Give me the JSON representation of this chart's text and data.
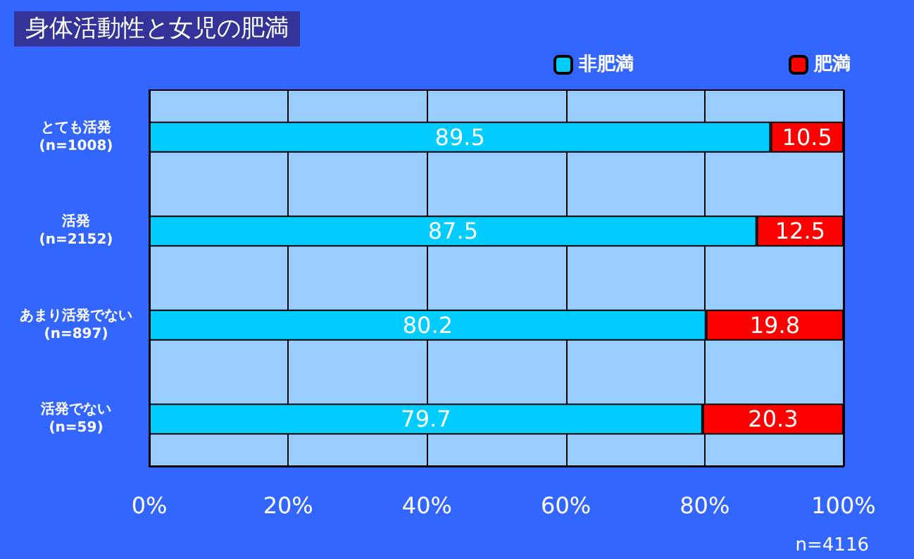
{
  "chart_data": {
    "type": "bar",
    "orientation": "horizontal",
    "stacked": true,
    "title": "身体活動性と女児の肥満",
    "categories": [
      "とても活発\n(n=1008)",
      "活発\n(n=2152)",
      "あまり活発でない\n(n=897)",
      "活発でない\n(n=59)"
    ],
    "series": [
      {
        "name": "非肥満",
        "color": "#00ccff",
        "values": [
          89.5,
          87.5,
          80.2,
          79.7
        ]
      },
      {
        "name": "肥満",
        "color": "#ff0000",
        "values": [
          10.5,
          12.5,
          19.8,
          20.3
        ]
      }
    ],
    "xlim": [
      0,
      100
    ],
    "xticks": [
      {
        "value": 0,
        "label": "0%"
      },
      {
        "value": 20,
        "label": "20%"
      },
      {
        "value": 40,
        "label": "40%"
      },
      {
        "value": 60,
        "label": "60%"
      },
      {
        "value": 80,
        "label": "80%"
      },
      {
        "value": 100,
        "label": "100%"
      }
    ],
    "data_labels": true,
    "grid": "x",
    "legend": "top right",
    "annotations": [
      "n=4116"
    ]
  }
}
